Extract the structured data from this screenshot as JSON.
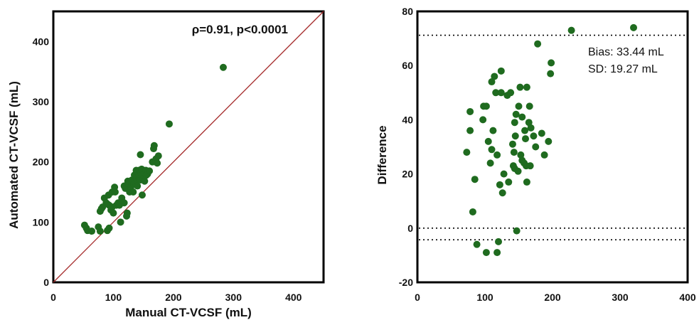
{
  "chart_data": [
    {
      "type": "scatter",
      "title": "",
      "xlabel": "Manual CT-VCSF (mL)",
      "ylabel": "Automated CT-VCSF (mL)",
      "xlim": [
        0,
        450
      ],
      "ylim": [
        0,
        450
      ],
      "xticks": [
        "0",
        "100",
        "200",
        "300",
        "400"
      ],
      "yticks": [
        "0",
        "100",
        "200",
        "300",
        "400"
      ],
      "annotation": "ρ=0.91, p<0.0001",
      "identity_line": {
        "from": [
          0,
          0
        ],
        "to": [
          450,
          450
        ],
        "color": "#a52a2a"
      },
      "marker_color": "#1f6b1f",
      "grid": false,
      "points": [
        [
          52,
          95
        ],
        [
          55,
          90
        ],
        [
          57,
          86
        ],
        [
          64,
          85
        ],
        [
          75,
          92
        ],
        [
          78,
          85
        ],
        [
          90,
          86
        ],
        [
          93,
          90
        ],
        [
          78,
          118
        ],
        [
          80,
          122
        ],
        [
          82,
          125
        ],
        [
          85,
          140
        ],
        [
          88,
          132
        ],
        [
          90,
          130
        ],
        [
          93,
          128
        ],
        [
          92,
          145
        ],
        [
          96,
          120
        ],
        [
          98,
          125
        ],
        [
          100,
          115
        ],
        [
          98,
          150
        ],
        [
          102,
          158
        ],
        [
          103,
          150
        ],
        [
          105,
          128
        ],
        [
          108,
          132
        ],
        [
          110,
          128
        ],
        [
          112,
          100
        ],
        [
          114,
          140
        ],
        [
          118,
          132
        ],
        [
          118,
          160
        ],
        [
          120,
          156
        ],
        [
          123,
          115
        ],
        [
          122,
          110
        ],
        [
          124,
          168
        ],
        [
          126,
          163
        ],
        [
          127,
          150
        ],
        [
          130,
          160
        ],
        [
          131,
          170
        ],
        [
          133,
          150
        ],
        [
          134,
          163
        ],
        [
          135,
          178
        ],
        [
          137,
          165
        ],
        [
          138,
          186
        ],
        [
          139,
          172
        ],
        [
          140,
          160
        ],
        [
          140,
          183
        ],
        [
          142,
          176
        ],
        [
          143,
          186
        ],
        [
          144,
          175
        ],
        [
          145,
          170
        ],
        [
          146,
          182
        ],
        [
          147,
          188
        ],
        [
          148,
          178
        ],
        [
          148,
          145
        ],
        [
          150,
          172
        ],
        [
          152,
          168
        ],
        [
          154,
          186
        ],
        [
          155,
          178
        ],
        [
          157,
          180
        ],
        [
          160,
          185
        ],
        [
          165,
          200
        ],
        [
          167,
          222
        ],
        [
          168,
          227
        ],
        [
          171,
          205
        ],
        [
          173,
          198
        ],
        [
          175,
          210
        ],
        [
          193,
          263
        ],
        [
          145,
          212
        ],
        [
          283,
          357
        ]
      ]
    },
    {
      "type": "scatter",
      "title": "",
      "xlabel": "",
      "ylabel": "Difference",
      "xlim": [
        0,
        400
      ],
      "ylim": [
        -20,
        80
      ],
      "xticks": [
        "0",
        "100",
        "200",
        "300",
        "400"
      ],
      "yticks": [
        "-20",
        "0",
        "20",
        "40",
        "60",
        "80"
      ],
      "reference_lines": [
        71.2,
        33.44,
        0,
        -4.3
      ],
      "visible_reference_lines": [
        71.2,
        0,
        -4.3
      ],
      "annotations": [
        "Bias: 33.44 mL",
        "SD:  19.27 mL"
      ],
      "marker_color": "#1f6b1f",
      "grid": false,
      "points": [
        [
          73,
          28
        ],
        [
          78,
          43
        ],
        [
          78,
          36
        ],
        [
          82,
          6
        ],
        [
          85,
          18
        ],
        [
          88,
          -6
        ],
        [
          97,
          40
        ],
        [
          98,
          45
        ],
        [
          102,
          45
        ],
        [
          102,
          -9
        ],
        [
          105,
          32
        ],
        [
          108,
          24
        ],
        [
          110,
          29
        ],
        [
          110,
          54
        ],
        [
          112,
          36
        ],
        [
          114,
          56
        ],
        [
          116,
          50
        ],
        [
          118,
          27
        ],
        [
          120,
          -5
        ],
        [
          118,
          -9
        ],
        [
          122,
          16
        ],
        [
          124,
          58
        ],
        [
          124,
          50
        ],
        [
          126,
          13
        ],
        [
          128,
          20
        ],
        [
          133,
          49
        ],
        [
          135,
          17
        ],
        [
          138,
          50
        ],
        [
          141,
          31
        ],
        [
          142,
          23
        ],
        [
          143,
          28
        ],
        [
          144,
          22
        ],
        [
          144,
          39
        ],
        [
          145,
          34
        ],
        [
          146,
          42
        ],
        [
          147,
          -1
        ],
        [
          149,
          21
        ],
        [
          150,
          45
        ],
        [
          152,
          52
        ],
        [
          153,
          27
        ],
        [
          155,
          25
        ],
        [
          155,
          41
        ],
        [
          158,
          24
        ],
        [
          159,
          36
        ],
        [
          160,
          33
        ],
        [
          161,
          23
        ],
        [
          162,
          52
        ],
        [
          162,
          17
        ],
        [
          165,
          39
        ],
        [
          166,
          45
        ],
        [
          167,
          23
        ],
        [
          168,
          37
        ],
        [
          172,
          34
        ],
        [
          175,
          30
        ],
        [
          178,
          68
        ],
        [
          184,
          35
        ],
        [
          188,
          27
        ],
        [
          194,
          32
        ],
        [
          197,
          57
        ],
        [
          198,
          61
        ],
        [
          228,
          73
        ],
        [
          320,
          74
        ]
      ]
    }
  ]
}
